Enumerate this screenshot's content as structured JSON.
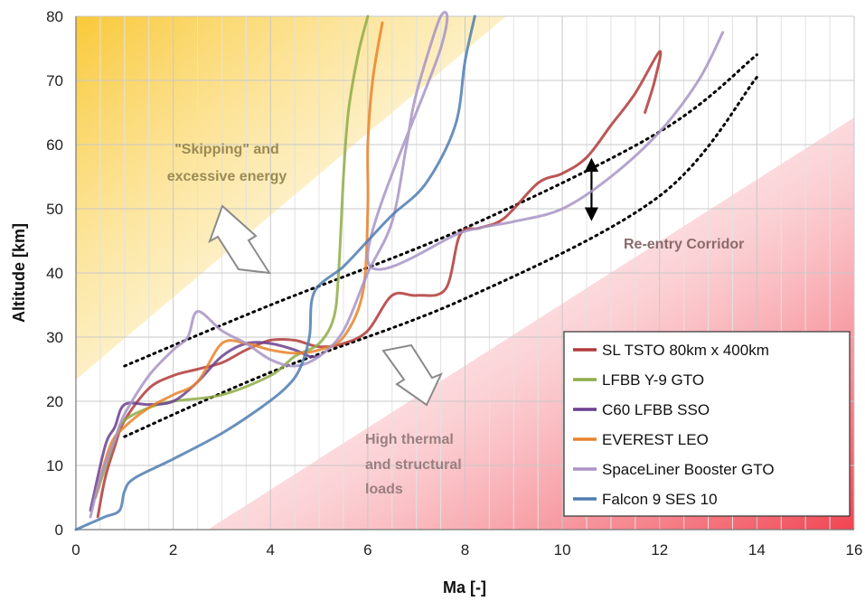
{
  "chart_data": {
    "type": "line",
    "xlabel": "Ma [-]",
    "ylabel": "Altitude [km]",
    "xlim": [
      0,
      16
    ],
    "ylim": [
      0,
      80
    ],
    "xticks": [
      0,
      2,
      4,
      6,
      8,
      10,
      12,
      14,
      16
    ],
    "yticks": [
      0,
      10,
      20,
      30,
      40,
      50,
      60,
      70,
      80
    ],
    "grid": true,
    "legend_position": "bottom-right",
    "annotations": {
      "skipping_line1": "\"Skipping\" and",
      "skipping_line2": "excessive energy",
      "thermal_line1": "High thermal",
      "thermal_line2": "and structural",
      "thermal_line3": "loads",
      "corridor": "Re-entry Corridor"
    },
    "colors": {
      "skipping_zone": "#f9c62e",
      "thermal_zone": "#f03a48",
      "annotation_text_skipping": "#9a8a55",
      "annotation_text_thermal": "#9a7f80",
      "annotation_text_corridor": "#8a6a6a"
    },
    "corridor_bounds": {
      "upper": [
        [
          1.0,
          25.5
        ],
        [
          4.0,
          35.0
        ],
        [
          8.0,
          47.0
        ],
        [
          12.0,
          62.0
        ],
        [
          14.0,
          74.0
        ]
      ],
      "lower": [
        [
          1.0,
          14.5
        ],
        [
          4.0,
          24.5
        ],
        [
          8.0,
          36.0
        ],
        [
          12.0,
          52.0
        ],
        [
          14.0,
          70.5
        ]
      ],
      "arrow": [
        [
          10.6,
          57.5
        ],
        [
          10.6,
          48.5
        ]
      ]
    },
    "series": [
      {
        "name": "SL TSTO 80km x 400km",
        "color": "#b03a3a",
        "points": [
          [
            0.45,
            2
          ],
          [
            0.6,
            8
          ],
          [
            0.8,
            13
          ],
          [
            1.0,
            17
          ],
          [
            1.5,
            22
          ],
          [
            2.0,
            24
          ],
          [
            2.5,
            25
          ],
          [
            3.0,
            26
          ],
          [
            3.5,
            28
          ],
          [
            4.0,
            29.5
          ],
          [
            4.5,
            29.5
          ],
          [
            5.0,
            28.5
          ],
          [
            5.5,
            29
          ],
          [
            6.0,
            31
          ],
          [
            6.5,
            36.5
          ],
          [
            7.0,
            36.5
          ],
          [
            7.6,
            37.5
          ],
          [
            7.9,
            46
          ],
          [
            8.3,
            47
          ],
          [
            8.8,
            48.5
          ],
          [
            9.5,
            54
          ],
          [
            10.0,
            55.5
          ],
          [
            10.5,
            58
          ],
          [
            11.0,
            63
          ],
          [
            11.5,
            68
          ],
          [
            12.0,
            74.5
          ],
          [
            11.9,
            70
          ],
          [
            11.7,
            65
          ]
        ]
      },
      {
        "name": "LFBB Y-9 GTO",
        "color": "#8fac48",
        "points": [
          [
            0.4,
            5
          ],
          [
            0.8,
            14
          ],
          [
            1.0,
            17
          ],
          [
            1.5,
            19
          ],
          [
            2.0,
            20
          ],
          [
            3.0,
            21
          ],
          [
            4.0,
            24
          ],
          [
            4.5,
            27
          ],
          [
            5.0,
            29
          ],
          [
            5.3,
            33
          ],
          [
            5.4,
            40
          ],
          [
            5.5,
            55
          ],
          [
            5.6,
            65
          ],
          [
            5.8,
            74
          ],
          [
            6.0,
            80
          ]
        ]
      },
      {
        "name": "C60 LFBB SSO",
        "color": "#6a3f8f",
        "points": [
          [
            0.3,
            3
          ],
          [
            0.6,
            13
          ],
          [
            0.8,
            16
          ],
          [
            1.0,
            19.5
          ],
          [
            1.5,
            19.5
          ],
          [
            2.0,
            20
          ],
          [
            2.5,
            23
          ],
          [
            3.0,
            27
          ],
          [
            3.5,
            29
          ],
          [
            4.0,
            29
          ],
          [
            4.5,
            28
          ],
          [
            4.8,
            27
          ],
          [
            5.0,
            27
          ]
        ]
      },
      {
        "name": "EVEREST LEO",
        "color": "#e8842c",
        "points": [
          [
            0.4,
            5
          ],
          [
            0.7,
            13
          ],
          [
            1.0,
            16
          ],
          [
            1.5,
            19
          ],
          [
            2.0,
            21
          ],
          [
            2.5,
            23
          ],
          [
            3.0,
            29
          ],
          [
            3.5,
            29
          ],
          [
            4.0,
            28
          ],
          [
            4.5,
            27.5
          ],
          [
            5.0,
            28
          ],
          [
            5.5,
            30
          ],
          [
            5.9,
            37
          ],
          [
            6.0,
            50
          ],
          [
            6.0,
            60
          ],
          [
            6.1,
            70
          ],
          [
            6.3,
            79
          ]
        ]
      },
      {
        "name": "SpaceLiner Booster GTO",
        "color": "#a894c6",
        "points": [
          [
            0.3,
            2
          ],
          [
            0.5,
            8
          ],
          [
            0.8,
            14
          ],
          [
            1.0,
            18
          ],
          [
            1.5,
            24
          ],
          [
            2.0,
            28
          ],
          [
            2.3,
            30
          ],
          [
            2.5,
            34
          ],
          [
            3.0,
            31
          ],
          [
            3.5,
            29
          ],
          [
            4.0,
            26.5
          ],
          [
            4.5,
            25.5
          ],
          [
            5.0,
            27
          ],
          [
            5.5,
            31
          ],
          [
            6.0,
            40
          ],
          [
            6.5,
            48
          ],
          [
            6.8,
            60
          ],
          [
            7.0,
            68
          ],
          [
            7.5,
            80
          ],
          [
            7.5,
            75
          ],
          [
            6.0,
            42
          ],
          [
            8.0,
            46.5
          ],
          [
            9.0,
            48
          ],
          [
            10.0,
            50
          ],
          [
            11.0,
            55
          ],
          [
            12.0,
            62
          ],
          [
            12.8,
            70
          ],
          [
            13.3,
            77.5
          ]
        ]
      },
      {
        "name": "Falcon 9 SES 10",
        "color": "#4f7cb0",
        "points": [
          [
            0.0,
            0
          ],
          [
            0.3,
            1
          ],
          [
            0.6,
            2
          ],
          [
            0.9,
            3
          ],
          [
            1.0,
            6
          ],
          [
            1.2,
            8
          ],
          [
            2.0,
            11
          ],
          [
            3.0,
            15
          ],
          [
            3.8,
            19
          ],
          [
            4.3,
            22
          ],
          [
            4.6,
            25
          ],
          [
            4.8,
            30
          ],
          [
            4.9,
            37
          ],
          [
            5.5,
            41
          ],
          [
            6.0,
            45
          ],
          [
            6.5,
            49
          ],
          [
            7.2,
            54
          ],
          [
            7.8,
            63
          ],
          [
            8.0,
            73
          ],
          [
            8.2,
            80
          ]
        ]
      }
    ]
  }
}
